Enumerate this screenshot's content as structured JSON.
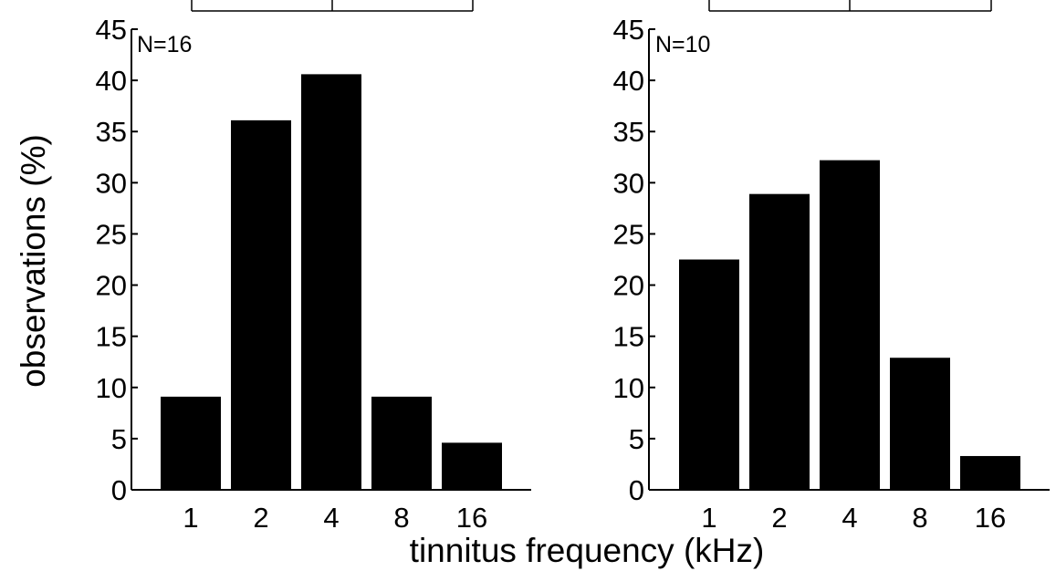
{
  "chart_data": [
    {
      "type": "bar",
      "annotation": "N=16",
      "categories": [
        "1",
        "2",
        "4",
        "8",
        "16"
      ],
      "values": [
        9.1,
        36.1,
        40.6,
        9.1,
        4.6
      ],
      "ylim": [
        0,
        45
      ],
      "yticks": [
        0,
        5,
        10,
        15,
        20,
        25,
        30,
        35,
        40,
        45
      ],
      "bar_color": "#000000",
      "grid": false,
      "legend": "none"
    },
    {
      "type": "bar",
      "annotation": "N=10",
      "categories": [
        "1",
        "2",
        "4",
        "8",
        "16"
      ],
      "values": [
        22.5,
        28.9,
        32.2,
        12.9,
        3.3
      ],
      "ylim": [
        0,
        45
      ],
      "yticks": [
        0,
        5,
        10,
        15,
        20,
        25,
        30,
        35,
        40,
        45
      ],
      "bar_color": "#000000",
      "grid": false,
      "legend": "none"
    }
  ],
  "labels": {
    "ylabel": "observations (%)",
    "xlabel": "tinnitus frequency (kHz)"
  }
}
